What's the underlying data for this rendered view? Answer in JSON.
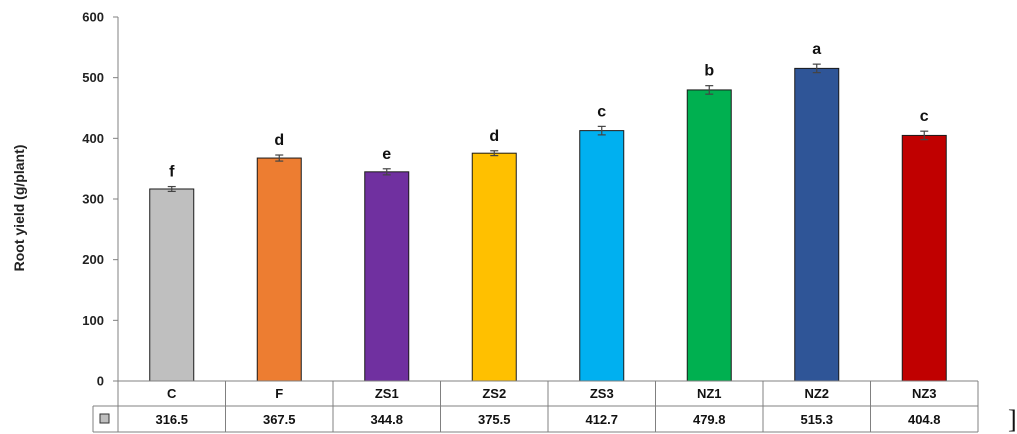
{
  "chart_data": {
    "type": "bar",
    "ylabel": "Root yield (g/plant)",
    "ylim": [
      0,
      600
    ],
    "yticks": [
      "0",
      "100",
      "200",
      "300",
      "400",
      "500",
      "600"
    ],
    "categories": [
      "C",
      "F",
      "ZS1",
      "ZS2",
      "ZS3",
      "NZ1",
      "NZ2",
      "NZ3"
    ],
    "values": [
      316.5,
      367.5,
      344.8,
      375.5,
      412.7,
      479.8,
      515.3,
      404.8
    ],
    "value_labels": [
      "316.5",
      "367.5",
      "344.8",
      "375.5",
      "412.7",
      "479.8",
      "515.3",
      "404.8"
    ],
    "errors": [
      4,
      5,
      5,
      4,
      7,
      7,
      7,
      7
    ],
    "significance_letters": [
      "f",
      "d",
      "e",
      "d",
      "c",
      "b",
      "a",
      "c"
    ],
    "colors": [
      "#bfbfbf",
      "#ed7d31",
      "#7030a0",
      "#ffc000",
      "#00b0f0",
      "#00b050",
      "#2f5597",
      "#c00000"
    ],
    "grid": false,
    "data_table": true,
    "legend_key_color": "#bfbfbf"
  },
  "stray_glyph": "]"
}
